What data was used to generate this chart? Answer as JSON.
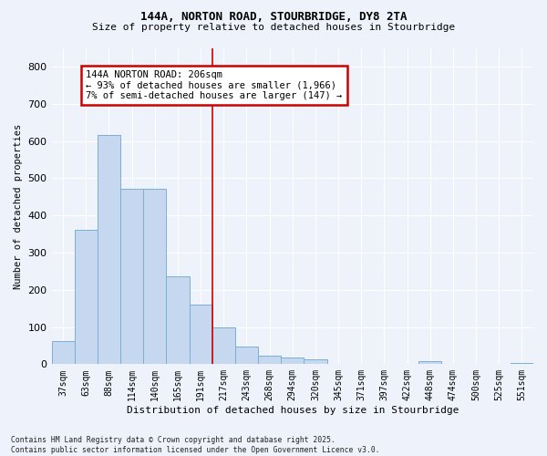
{
  "title1": "144A, NORTON ROAD, STOURBRIDGE, DY8 2TA",
  "title2": "Size of property relative to detached houses in Stourbridge",
  "xlabel": "Distribution of detached houses by size in Stourbridge",
  "ylabel": "Number of detached properties",
  "categories": [
    "37sqm",
    "63sqm",
    "88sqm",
    "114sqm",
    "140sqm",
    "165sqm",
    "191sqm",
    "217sqm",
    "243sqm",
    "268sqm",
    "294sqm",
    "320sqm",
    "345sqm",
    "371sqm",
    "397sqm",
    "422sqm",
    "448sqm",
    "474sqm",
    "500sqm",
    "525sqm",
    "551sqm"
  ],
  "values": [
    63,
    362,
    617,
    472,
    472,
    237,
    160,
    100,
    48,
    22,
    18,
    13,
    2,
    2,
    2,
    2,
    8,
    2,
    2,
    2,
    3
  ],
  "bar_color": "#c5d8f0",
  "bar_edge_color": "#7aafd4",
  "vline_x_index": 7,
  "annotation_text": "144A NORTON ROAD: 206sqm\n← 93% of detached houses are smaller (1,966)\n7% of semi-detached houses are larger (147) →",
  "annotation_box_color": "#ffffff",
  "annotation_box_edge": "#cc0000",
  "ylim": [
    0,
    850
  ],
  "yticks": [
    0,
    100,
    200,
    300,
    400,
    500,
    600,
    700,
    800
  ],
  "bg_color": "#eef2fb",
  "grid_color": "#ffffff",
  "footer": "Contains HM Land Registry data © Crown copyright and database right 2025.\nContains public sector information licensed under the Open Government Licence v3.0."
}
